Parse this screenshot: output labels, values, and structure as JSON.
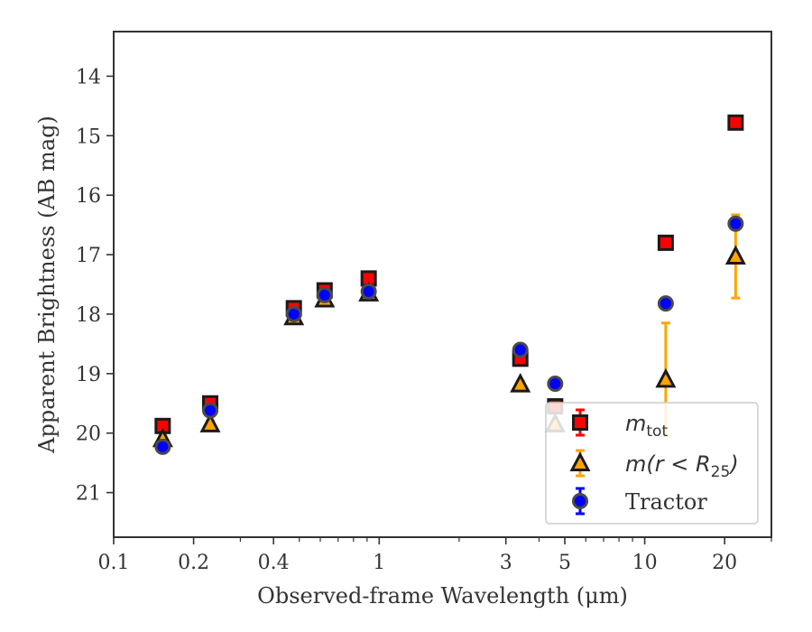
{
  "chart_data": {
    "type": "scatter",
    "xlabel": "Observed-frame Wavelength (μm)",
    "ylabel": "Apparent Brightness (AB mag)",
    "xscale": "log",
    "xlim": [
      0.1,
      30
    ],
    "ylim": [
      21.75,
      13.25
    ],
    "y_inverted": true,
    "grid": false,
    "legend_position": "lower-right",
    "xticks": [
      {
        "value": 0.1,
        "label": "0.1"
      },
      {
        "value": 0.2,
        "label": "0.2"
      },
      {
        "value": 0.4,
        "label": "0.4"
      },
      {
        "value": 1,
        "label": "1"
      },
      {
        "value": 3,
        "label": "3"
      },
      {
        "value": 5,
        "label": "5"
      },
      {
        "value": 10,
        "label": "10"
      },
      {
        "value": 20,
        "label": "20"
      }
    ],
    "xminor": [
      0.3,
      0.5,
      0.6,
      0.7,
      0.8,
      0.9,
      2,
      4,
      6,
      7,
      8,
      9,
      30
    ],
    "yticks": [
      {
        "value": 14,
        "label": "14"
      },
      {
        "value": 15,
        "label": "15"
      },
      {
        "value": 16,
        "label": "16"
      },
      {
        "value": 17,
        "label": "17"
      },
      {
        "value": 18,
        "label": "18"
      },
      {
        "value": 19,
        "label": "19"
      },
      {
        "value": 20,
        "label": "20"
      },
      {
        "value": 21,
        "label": "21"
      }
    ],
    "series": [
      {
        "name": "m_tot",
        "legend_base": "m",
        "legend_sub": "tot",
        "marker": "square",
        "face_color": "#ff0000",
        "err_color": "#ff0000",
        "points": [
          {
            "x": 0.153,
            "y": 19.88,
            "err": 0.05
          },
          {
            "x": 0.231,
            "y": 19.5,
            "err": 0.05
          },
          {
            "x": 0.477,
            "y": 17.9,
            "err": 0.05
          },
          {
            "x": 0.623,
            "y": 17.6,
            "err": 0.05
          },
          {
            "x": 0.913,
            "y": 17.4,
            "err": 0.05
          },
          {
            "x": 3.4,
            "y": 18.75,
            "err": 0.05
          },
          {
            "x": 4.6,
            "y": 19.55,
            "err": 0.05
          },
          {
            "x": 12.0,
            "y": 16.8,
            "err": 0.05
          },
          {
            "x": 22.0,
            "y": 14.78,
            "err": 0.05
          }
        ]
      },
      {
        "name": "m(r<R25)",
        "legend_base": "m",
        "legend_rest": "(r < R",
        "legend_sub": "25",
        "legend_close": ")",
        "marker": "triangle",
        "face_color": "#ffa500",
        "err_color": "#ffa500",
        "points": [
          {
            "x": 0.153,
            "y": 20.1,
            "err": 0.05
          },
          {
            "x": 0.231,
            "y": 19.85,
            "err": 0.05
          },
          {
            "x": 0.477,
            "y": 18.05,
            "err": 0.05
          },
          {
            "x": 0.623,
            "y": 17.75,
            "err": 0.05
          },
          {
            "x": 0.913,
            "y": 17.65,
            "err": 0.05
          },
          {
            "x": 3.4,
            "y": 19.18,
            "err": 0.05
          },
          {
            "x": 4.6,
            "y": 19.85,
            "err": 0.05
          },
          {
            "x": 12.0,
            "y": 19.1,
            "err": 0.95
          },
          {
            "x": 22.0,
            "y": 17.03,
            "err": 0.7
          }
        ]
      },
      {
        "name": "Tractor",
        "marker": "circle",
        "face_color": "#0000ff",
        "err_color": "#0000ff",
        "points": [
          {
            "x": 0.153,
            "y": 20.23,
            "err": 0.05
          },
          {
            "x": 0.231,
            "y": 19.62,
            "err": 0.05
          },
          {
            "x": 0.477,
            "y": 18.0,
            "err": 0.05
          },
          {
            "x": 0.623,
            "y": 17.68,
            "err": 0.05
          },
          {
            "x": 0.913,
            "y": 17.62,
            "err": 0.05
          },
          {
            "x": 3.4,
            "y": 18.6,
            "err": 0.05
          },
          {
            "x": 4.6,
            "y": 19.17,
            "err": 0.05
          },
          {
            "x": 12.0,
            "y": 17.82,
            "err": 0.05
          },
          {
            "x": 22.0,
            "y": 16.48,
            "err": 0.05
          }
        ]
      }
    ],
    "legend_labels": {
      "tractor": "Tractor"
    }
  }
}
